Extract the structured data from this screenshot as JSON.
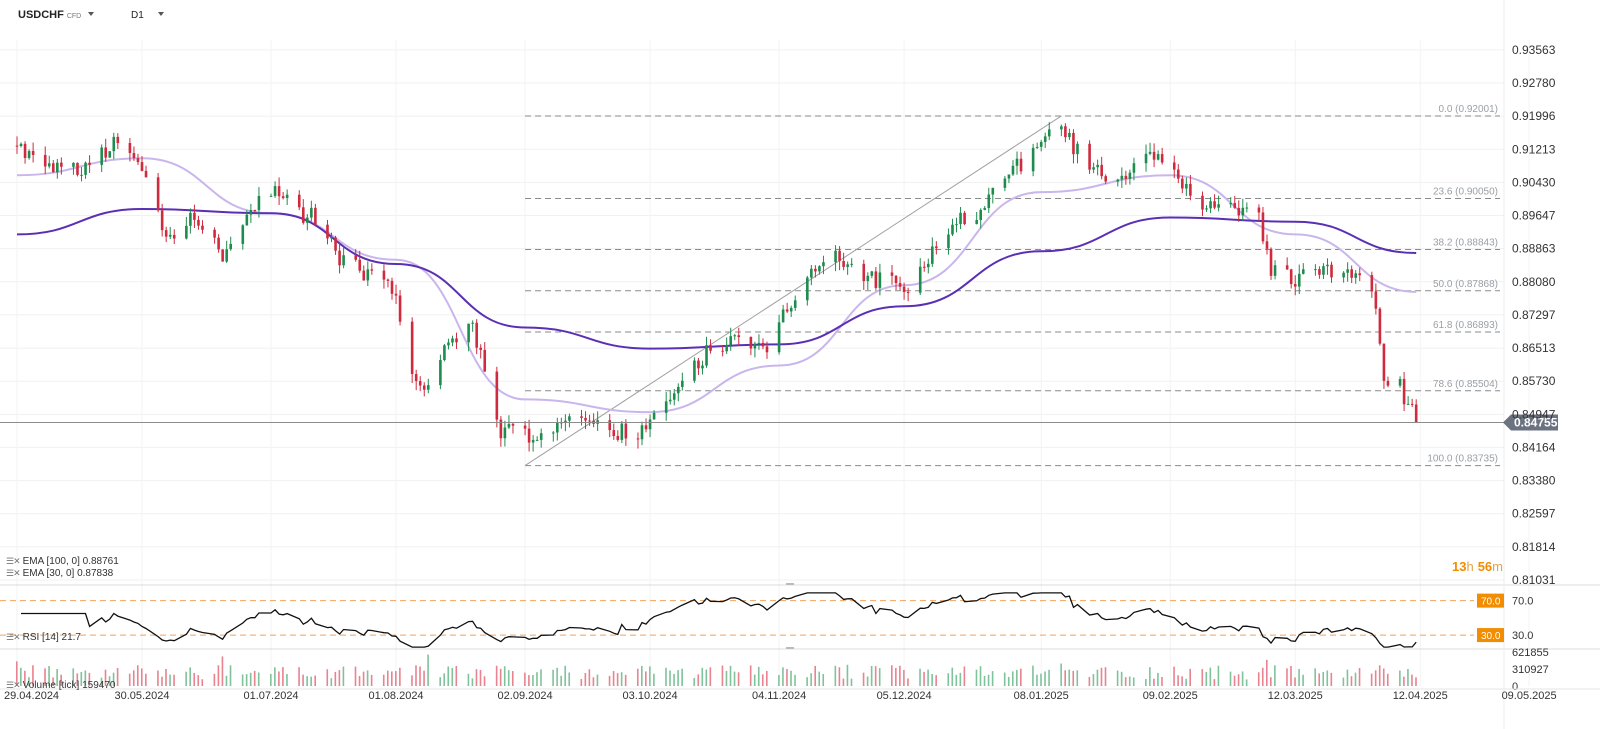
{
  "header": {
    "symbol": "USDCHF",
    "symbol_type": "CFD",
    "timeframe": "D1"
  },
  "legend": {
    "ema100": "EMA [100, 0] 0.88761",
    "ema30": "EMA [30, 0] 0.87838",
    "rsi": "RSI [14] 21.7",
    "volume": "Volume [tick] 159470"
  },
  "timer": {
    "hours": "13",
    "h_unit": "h",
    "minutes": "56",
    "m_unit": "m"
  },
  "colors": {
    "bull": "#1e8c4e",
    "bear": "#cf2a3d",
    "ema100": "#5b2fb4",
    "ema30": "#c9b6ec",
    "fib": "#8a8a8a",
    "rsi_band": "#f2a35a",
    "rsi_tag": "#f28c00",
    "price_tag": "#6b7280"
  },
  "chart_data": {
    "type": "candlestick",
    "symbol": "USDCHF",
    "timeframe": "D1",
    "x_start": "2024-04-29",
    "x_labels": [
      "29.04.2024",
      "30.05.2024",
      "01.07.2024",
      "01.08.2024",
      "02.09.2024",
      "03.10.2024",
      "04.11.2024",
      "05.12.2024",
      "08.01.2025",
      "09.02.2025",
      "12.03.2025",
      "12.04.2025",
      "09.05.2025"
    ],
    "y_ticks": [
      "0.93563",
      "0.92780",
      "0.91996",
      "0.91213",
      "0.90430",
      "0.89647",
      "0.88863",
      "0.88080",
      "0.87297",
      "0.86513",
      "0.85730",
      "0.84947",
      "0.84164",
      "0.83380",
      "0.82597",
      "0.81814",
      "0.81031"
    ],
    "ylim": [
      0.8103,
      0.9356
    ],
    "last_price": "0.84755",
    "close_path": [
      [
        "2024-04-29",
        0.913
      ],
      [
        "2024-05-03",
        0.91
      ],
      [
        "2024-05-10",
        0.907
      ],
      [
        "2024-05-17",
        0.908
      ],
      [
        "2024-05-24",
        0.915
      ],
      [
        "2024-05-30",
        0.907
      ],
      [
        "2024-06-05",
        0.89
      ],
      [
        "2024-06-12",
        0.896
      ],
      [
        "2024-06-19",
        0.887
      ],
      [
        "2024-06-26",
        0.897
      ],
      [
        "2024-07-02",
        0.903
      ],
      [
        "2024-07-08",
        0.897
      ],
      [
        "2024-07-12",
        0.896
      ],
      [
        "2024-07-19",
        0.885
      ],
      [
        "2024-07-25",
        0.883
      ],
      [
        "2024-08-01",
        0.878
      ],
      [
        "2024-08-05",
        0.858
      ],
      [
        "2024-08-09",
        0.855
      ],
      [
        "2024-08-14",
        0.866
      ],
      [
        "2024-08-20",
        0.87
      ],
      [
        "2024-08-27",
        0.846
      ],
      [
        "2024-09-02",
        0.845
      ],
      [
        "2024-09-06",
        0.844
      ],
      [
        "2024-09-12",
        0.847
      ],
      [
        "2024-09-18",
        0.848
      ],
      [
        "2024-09-24",
        0.846
      ],
      [
        "2024-09-30",
        0.844
      ],
      [
        "2024-10-03",
        0.849
      ],
      [
        "2024-10-10",
        0.856
      ],
      [
        "2024-10-17",
        0.864
      ],
      [
        "2024-10-24",
        0.866
      ],
      [
        "2024-11-01",
        0.865
      ],
      [
        "2024-11-06",
        0.874
      ],
      [
        "2024-11-12",
        0.882
      ],
      [
        "2024-11-18",
        0.886
      ],
      [
        "2024-11-26",
        0.882
      ],
      [
        "2024-12-02",
        0.88
      ],
      [
        "2024-12-06",
        0.879
      ],
      [
        "2024-12-12",
        0.888
      ],
      [
        "2024-12-18",
        0.895
      ],
      [
        "2024-12-24",
        0.898
      ],
      [
        "2024-12-30",
        0.905
      ],
      [
        "2025-01-08",
        0.913
      ],
      [
        "2025-01-13",
        0.917
      ],
      [
        "2025-01-20",
        0.908
      ],
      [
        "2025-01-27",
        0.904
      ],
      [
        "2025-02-03",
        0.912
      ],
      [
        "2025-02-09",
        0.906
      ],
      [
        "2025-02-17",
        0.9
      ],
      [
        "2025-02-24",
        0.898
      ],
      [
        "2025-03-03",
        0.895
      ],
      [
        "2025-03-06",
        0.883
      ],
      [
        "2025-03-12",
        0.881
      ],
      [
        "2025-03-18",
        0.883
      ],
      [
        "2025-03-25",
        0.883
      ],
      [
        "2025-03-31",
        0.88
      ],
      [
        "2025-04-03",
        0.859
      ],
      [
        "2025-04-07",
        0.856
      ],
      [
        "2025-04-11",
        0.8476
      ]
    ],
    "ema100_path": [
      [
        "2024-04-29",
        0.892
      ],
      [
        "2024-05-30",
        0.898
      ],
      [
        "2024-07-01",
        0.897
      ],
      [
        "2024-08-01",
        0.885
      ],
      [
        "2024-09-02",
        0.87
      ],
      [
        "2024-10-03",
        0.865
      ],
      [
        "2024-11-04",
        0.866
      ],
      [
        "2024-12-05",
        0.875
      ],
      [
        "2025-01-08",
        0.888
      ],
      [
        "2025-02-09",
        0.896
      ],
      [
        "2025-03-12",
        0.895
      ],
      [
        "2025-04-11",
        0.8876
      ]
    ],
    "ema30_path": [
      [
        "2024-04-29",
        0.906
      ],
      [
        "2024-05-30",
        0.91
      ],
      [
        "2024-07-01",
        0.897
      ],
      [
        "2024-08-01",
        0.886
      ],
      [
        "2024-09-02",
        0.853
      ],
      [
        "2024-10-03",
        0.85
      ],
      [
        "2024-11-04",
        0.861
      ],
      [
        "2024-12-05",
        0.88
      ],
      [
        "2025-01-08",
        0.902
      ],
      [
        "2025-02-09",
        0.906
      ],
      [
        "2025-03-12",
        0.892
      ],
      [
        "2025-04-11",
        0.8784
      ]
    ],
    "fibonacci": {
      "from": [
        "2024-09-02",
        0.83735
      ],
      "to": [
        "2025-01-13",
        0.92001
      ],
      "levels": [
        {
          "label": "0.0 (0.92001)",
          "value": 0.92001
        },
        {
          "label": "23.6 (0.90050)",
          "value": 0.9005
        },
        {
          "label": "38.2 (0.88843)",
          "value": 0.88843
        },
        {
          "label": "50.0 (0.87868)",
          "value": 0.87868
        },
        {
          "label": "61.8 (0.86893)",
          "value": 0.86893
        },
        {
          "label": "78.6 (0.85504)",
          "value": 0.85504
        },
        {
          "label": "100.0 (0.83735)",
          "value": 0.83735
        }
      ]
    },
    "rsi": {
      "period": 14,
      "last": 21.7,
      "levels": [
        {
          "value": 70,
          "tag": "70.0",
          "axis": "70.0"
        },
        {
          "value": 30,
          "tag": "30.0",
          "axis": "30.0"
        }
      ],
      "ylim": [
        15,
        80
      ]
    },
    "volume": {
      "last": 159470,
      "y_ticks": [
        "621855",
        "310927",
        "0"
      ],
      "ylim": [
        0,
        621855
      ]
    }
  }
}
